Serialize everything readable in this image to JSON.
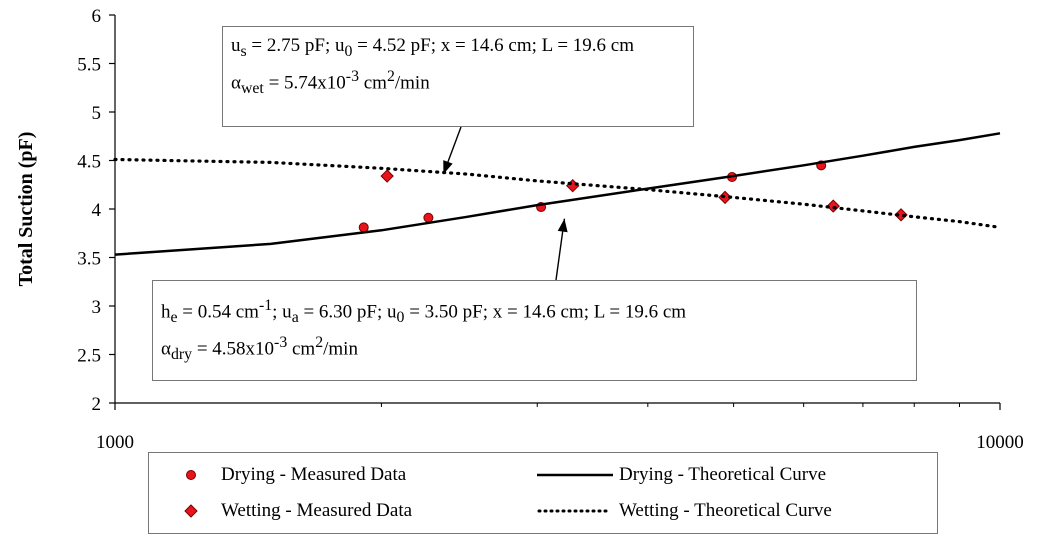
{
  "chart_data": {
    "type": "scatter",
    "x_scale": "log",
    "xlim": [
      1000,
      10000
    ],
    "ylim": [
      2,
      6
    ],
    "x_ticks": [
      "1000",
      "10000"
    ],
    "y_ticks": [
      "2",
      "2.5",
      "3",
      "3.5",
      "4",
      "4.5",
      "5",
      "5.5",
      "6"
    ],
    "ylabel": "Total Suction (pF)",
    "xlabel": "",
    "grid": false,
    "legend_position": "bottom",
    "series": [
      {
        "name": "Drying - Measured Data",
        "kind": "points",
        "marker": "circle",
        "color": "#e8141c",
        "x": [
          1910,
          2260,
          3030,
          4980,
          6280
        ],
        "y": [
          3.81,
          3.91,
          4.02,
          4.33,
          4.45
        ]
      },
      {
        "name": "Wetting - Measured Data",
        "kind": "points",
        "marker": "diamond",
        "color": "#e8141c",
        "x": [
          2030,
          3290,
          4890,
          6480,
          7730
        ],
        "y": [
          4.34,
          4.24,
          4.12,
          4.03,
          3.94
        ]
      },
      {
        "name": "Drying - Theoretical Curve",
        "kind": "line",
        "style": "solid",
        "color": "#000000",
        "x": [
          1000,
          1500,
          2000,
          2500,
          3000,
          4000,
          5000,
          6000,
          7000,
          8000,
          9000,
          10000
        ],
        "y": [
          3.53,
          3.64,
          3.78,
          3.92,
          4.04,
          4.21,
          4.34,
          4.45,
          4.55,
          4.64,
          4.71,
          4.78
        ]
      },
      {
        "name": "Wetting - Theoretical Curve",
        "kind": "line",
        "style": "dotted",
        "color": "#000000",
        "x": [
          1000,
          1500,
          2000,
          2500,
          3000,
          4000,
          5000,
          6000,
          7000,
          8000,
          9000,
          10000
        ],
        "y": [
          4.51,
          4.48,
          4.42,
          4.36,
          4.29,
          4.2,
          4.12,
          4.05,
          3.98,
          3.92,
          3.87,
          3.81
        ]
      }
    ],
    "annotations": [
      {
        "id": "wetting",
        "line1": {
          "s1": "u",
          "sub1": "s",
          "s2": " = 2.75 pF; u",
          "sub2": "0",
          "s3": " = 4.52 pF; x = 14.6 cm; L = 19.6 cm"
        },
        "line2": {
          "s1": "α",
          "sub1": "wet",
          "s2": " = 5.74x10",
          "sup1": "-3",
          "s3": " cm",
          "sup2": "2",
          "s4": "/min"
        },
        "arrow_to": [
          2350,
          4.36
        ]
      },
      {
        "id": "drying",
        "line1": {
          "s1": "h",
          "sub1": "e",
          "s2": " = 0.54 cm",
          "sup1": "-1",
          "s3": "; u",
          "sub2": "a",
          "s4": " = 6.30 pF; u",
          "sub3": "0",
          "s5": " = 3.50 pF; x = 14.6 cm; L = 19.6 cm"
        },
        "line2": {
          "s1": "α",
          "sub1": "dry",
          "s2": " = 4.58x10",
          "sup1": "-3",
          "s3": " cm",
          "sup2": "2",
          "s4": "/min"
        },
        "arrow_to": [
          3220,
          3.9
        ]
      }
    ]
  }
}
